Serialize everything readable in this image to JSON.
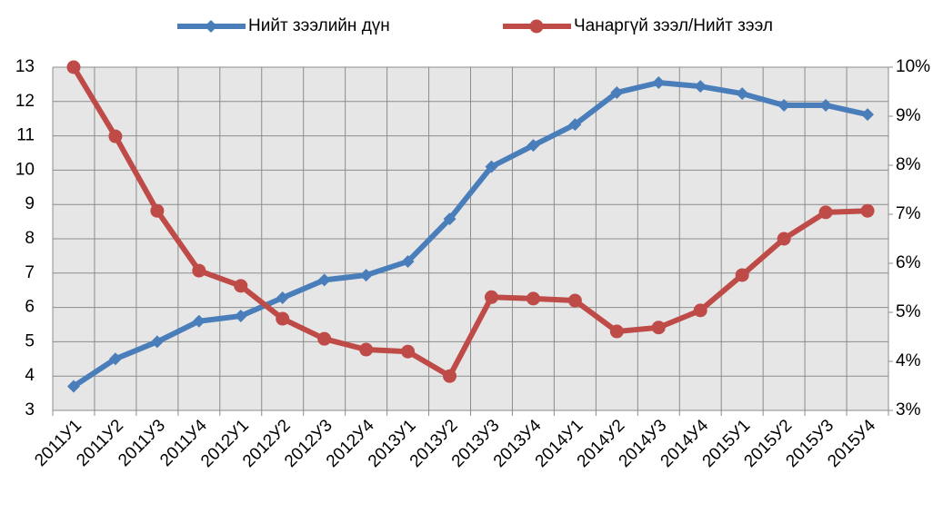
{
  "chart_data": {
    "type": "line",
    "categories": [
      "2011У1",
      "2011У2",
      "2011У3",
      "2011У4",
      "2012У1",
      "2012У2",
      "2012У3",
      "2012У4",
      "2013У1",
      "2013У2",
      "2013У3",
      "2013У4",
      "2014У1",
      "2014У2",
      "2014У3",
      "2014У4",
      "2015У1",
      "2015У2",
      "2015У3",
      "2015У4"
    ],
    "series": [
      {
        "name": "Нийт зээлийн дүн",
        "color": "#4a7ebb",
        "marker": "diamond",
        "values": [
          3.7,
          4.5,
          5.0,
          5.6,
          5.75,
          6.28,
          6.8,
          6.94,
          7.34,
          8.58,
          10.1,
          10.72,
          11.33,
          12.26,
          12.55,
          12.44,
          12.23,
          11.89,
          11.89,
          11.62
        ]
      },
      {
        "name": "Чанаргүй зээл/Нийт зээл",
        "color": "#be4b48",
        "marker": "circle",
        "axis": "y2",
        "values": [
          10.0,
          8.59,
          7.07,
          5.85,
          5.54,
          4.87,
          4.46,
          4.24,
          4.2,
          3.7,
          5.31,
          5.28,
          5.24,
          4.61,
          4.69,
          5.04,
          5.76,
          6.5,
          7.04,
          7.07
        ]
      }
    ],
    "ylim": [
      3,
      13
    ],
    "yticks": [
      3,
      4,
      5,
      6,
      7,
      8,
      9,
      10,
      11,
      12,
      13
    ],
    "y2lim": [
      3,
      10
    ],
    "y2ticks": [
      {
        "value": 3,
        "label": "3%"
      },
      {
        "value": 4,
        "label": "4%"
      },
      {
        "value": 5,
        "label": "5%"
      },
      {
        "value": 6,
        "label": "6%"
      },
      {
        "value": 7,
        "label": "7%"
      },
      {
        "value": 8,
        "label": "8%"
      },
      {
        "value": 9,
        "label": "9%"
      },
      {
        "value": 10,
        "label": "10%"
      }
    ],
    "grid": true,
    "legend": "top"
  }
}
